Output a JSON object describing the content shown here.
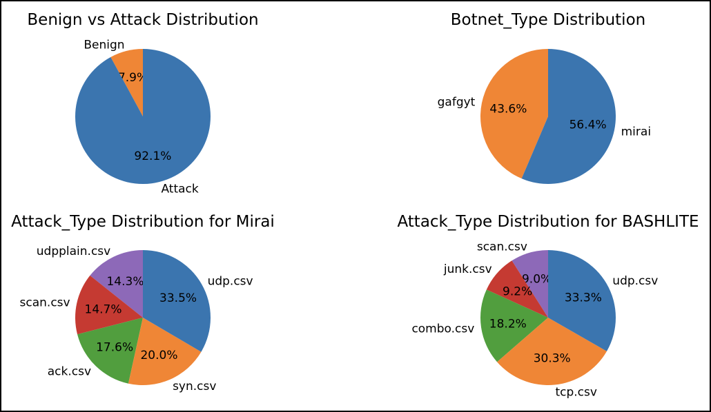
{
  "chart_data": [
    {
      "type": "pie",
      "title": "Benign vs Attack Distribution",
      "slices": [
        {
          "label": "Benign",
          "value": 7.9,
          "pct_label": "7.9%",
          "color": "#ef8636"
        },
        {
          "label": "Attack",
          "value": 92.1,
          "pct_label": "92.1%",
          "color": "#3b75af"
        }
      ]
    },
    {
      "type": "pie",
      "title": "Botnet_Type Distribution",
      "slices": [
        {
          "label": "gafgyt",
          "value": 43.6,
          "pct_label": "43.6%",
          "color": "#ef8636"
        },
        {
          "label": "mirai",
          "value": 56.4,
          "pct_label": "56.4%",
          "color": "#3b75af"
        }
      ]
    },
    {
      "type": "pie",
      "title": "Attack_Type Distribution for Mirai",
      "slices": [
        {
          "label": "udpplain.csv",
          "value": 14.3,
          "pct_label": "14.3%",
          "color": "#8d69b8"
        },
        {
          "label": "scan.csv",
          "value": 14.7,
          "pct_label": "14.7%",
          "color": "#c53a32"
        },
        {
          "label": "ack.csv",
          "value": 17.6,
          "pct_label": "17.6%",
          "color": "#519e3e"
        },
        {
          "label": "syn.csv",
          "value": 20.0,
          "pct_label": "20.0%",
          "color": "#ef8636"
        },
        {
          "label": "udp.csv",
          "value": 33.5,
          "pct_label": "33.5%",
          "color": "#3b75af"
        }
      ]
    },
    {
      "type": "pie",
      "title": "Attack_Type Distribution for BASHLITE",
      "slices": [
        {
          "label": "scan.csv",
          "value": 9.0,
          "pct_label": "9.0%",
          "color": "#8d69b8"
        },
        {
          "label": "junk.csv",
          "value": 9.2,
          "pct_label": "9.2%",
          "color": "#c53a32"
        },
        {
          "label": "combo.csv",
          "value": 18.2,
          "pct_label": "18.2%",
          "color": "#519e3e"
        },
        {
          "label": "tcp.csv",
          "value": 30.3,
          "pct_label": "30.3%",
          "color": "#ef8636"
        },
        {
          "label": "udp.csv",
          "value": 33.3,
          "pct_label": "33.3%",
          "color": "#3b75af"
        }
      ]
    }
  ]
}
